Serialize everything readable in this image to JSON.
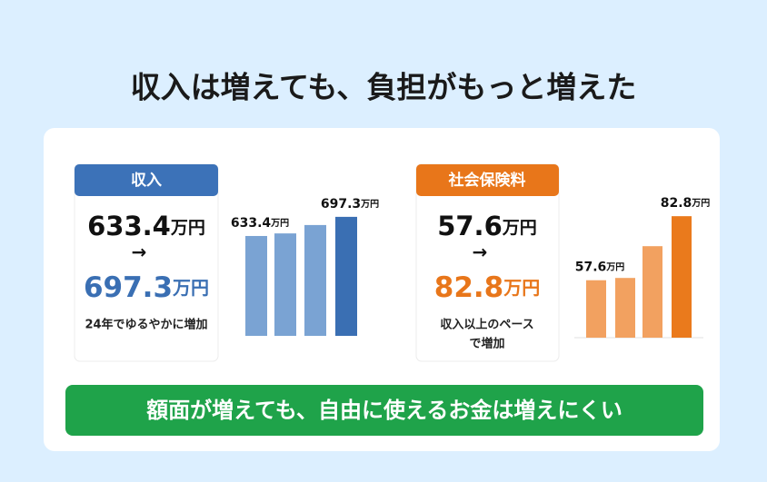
{
  "title": "収入は増えても、負担がもっと増えた",
  "cards": [
    {
      "header": "収入",
      "from": "633.4万円",
      "arrow": "→",
      "to": "697.3万円",
      "note": [
        "24年でゆるやかに増加"
      ]
    },
    {
      "header": "社会保険料",
      "from": "57.6万円",
      "arrow": "→",
      "to": "82.8万円",
      "note": [
        "収入以上のペース",
        "で増加"
      ]
    }
  ],
  "chart_data": [
    {
      "type": "bar",
      "values": [
        633.4,
        642,
        670,
        697.3
      ],
      "value_labels": [
        "633.4万円",
        null,
        null,
        "697.3万円"
      ],
      "colors": [
        "#7aa3d3",
        "#7aa3d3",
        "#7aa3d3",
        "#3a6fb3"
      ],
      "ylim": [
        300,
        700
      ]
    },
    {
      "type": "bar",
      "values": [
        57.6,
        58.5,
        71,
        82.8
      ],
      "value_labels": [
        "57.6万円",
        null,
        null,
        "82.8万円"
      ],
      "colors": [
        "#f2a160",
        "#f2a160",
        "#f2a160",
        "#ea7a1c"
      ],
      "ylim": [
        35,
        85
      ]
    }
  ],
  "conclusion": "額面が増えても、自由に使えるお金は増えにくい"
}
